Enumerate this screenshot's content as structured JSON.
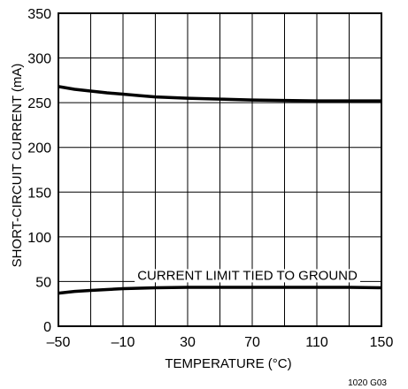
{
  "chart_data": {
    "type": "line",
    "title": "",
    "xlabel": "TEMPERATURE (°C)",
    "ylabel": "SHORT-CIRCUIT CURRENT (mA)",
    "xlim": [
      -50,
      150
    ],
    "ylim": [
      0,
      350
    ],
    "x_ticks": [
      -50,
      -10,
      30,
      70,
      110,
      150
    ],
    "x_tick_labels": [
      "–50",
      "–10",
      "30",
      "70",
      "110",
      "150"
    ],
    "y_ticks": [
      0,
      50,
      100,
      150,
      200,
      250,
      300,
      350
    ],
    "y_tick_labels": [
      "0",
      "50",
      "100",
      "150",
      "200",
      "250",
      "300",
      "350"
    ],
    "grid": true,
    "grid_x_step": 20,
    "grid_y_step": 50,
    "series": [
      {
        "name": "",
        "color": "#000000",
        "x": [
          -50,
          -40,
          -30,
          -20,
          -10,
          0,
          10,
          30,
          50,
          70,
          90,
          110,
          130,
          150
        ],
        "y": [
          268,
          265,
          263,
          261,
          259.5,
          258,
          256.5,
          255,
          254,
          253,
          252.5,
          252,
          252,
          252
        ]
      },
      {
        "name": "",
        "color": "#000000",
        "x": [
          -50,
          -40,
          -30,
          -20,
          -10,
          0,
          10,
          30,
          50,
          70,
          90,
          110,
          130,
          150
        ],
        "y": [
          37,
          39,
          40,
          41,
          42,
          42.5,
          43,
          43.5,
          43.5,
          43.5,
          43.5,
          43.5,
          43.5,
          43
        ]
      }
    ],
    "annotations": [
      {
        "text": "CURRENT LIMIT TIED TO GROUND",
        "x": 67,
        "y": 52
      }
    ],
    "figure_id": "1020 G03"
  }
}
